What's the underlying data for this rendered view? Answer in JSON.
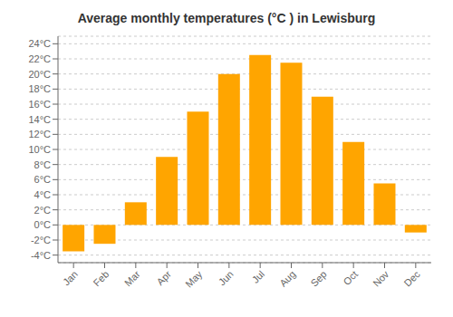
{
  "chart_data": {
    "type": "bar",
    "title": "Average monthly temperatures (°C ) in Lewisburg",
    "categories": [
      "Jan",
      "Feb",
      "Mar",
      "Apr",
      "May",
      "Jun",
      "Jul",
      "Aug",
      "Sep",
      "Oct",
      "Nov",
      "Dec"
    ],
    "values": [
      -3.5,
      -2.5,
      3.0,
      9.0,
      15.0,
      20.0,
      22.5,
      21.5,
      17.0,
      11.0,
      5.5,
      -1.0
    ],
    "color": "#FFA500",
    "ylim": [
      -5,
      25
    ],
    "yticks": [
      {
        "value": -4,
        "label": "-4°C"
      },
      {
        "value": -2,
        "label": "-2°C"
      },
      {
        "value": 0,
        "label": "0°C"
      },
      {
        "value": 2,
        "label": "2°C"
      },
      {
        "value": 4,
        "label": "4°C"
      },
      {
        "value": 6,
        "label": "6°C"
      },
      {
        "value": 8,
        "label": "8°C"
      },
      {
        "value": 10,
        "label": "10°C"
      },
      {
        "value": 12,
        "label": "12°C"
      },
      {
        "value": 14,
        "label": "14°C"
      },
      {
        "value": 16,
        "label": "16°C"
      },
      {
        "value": 18,
        "label": "18°C"
      },
      {
        "value": 20,
        "label": "20°C"
      },
      {
        "value": 22,
        "label": "22°C"
      },
      {
        "value": 24,
        "label": "24°C"
      }
    ],
    "grid": true
  }
}
